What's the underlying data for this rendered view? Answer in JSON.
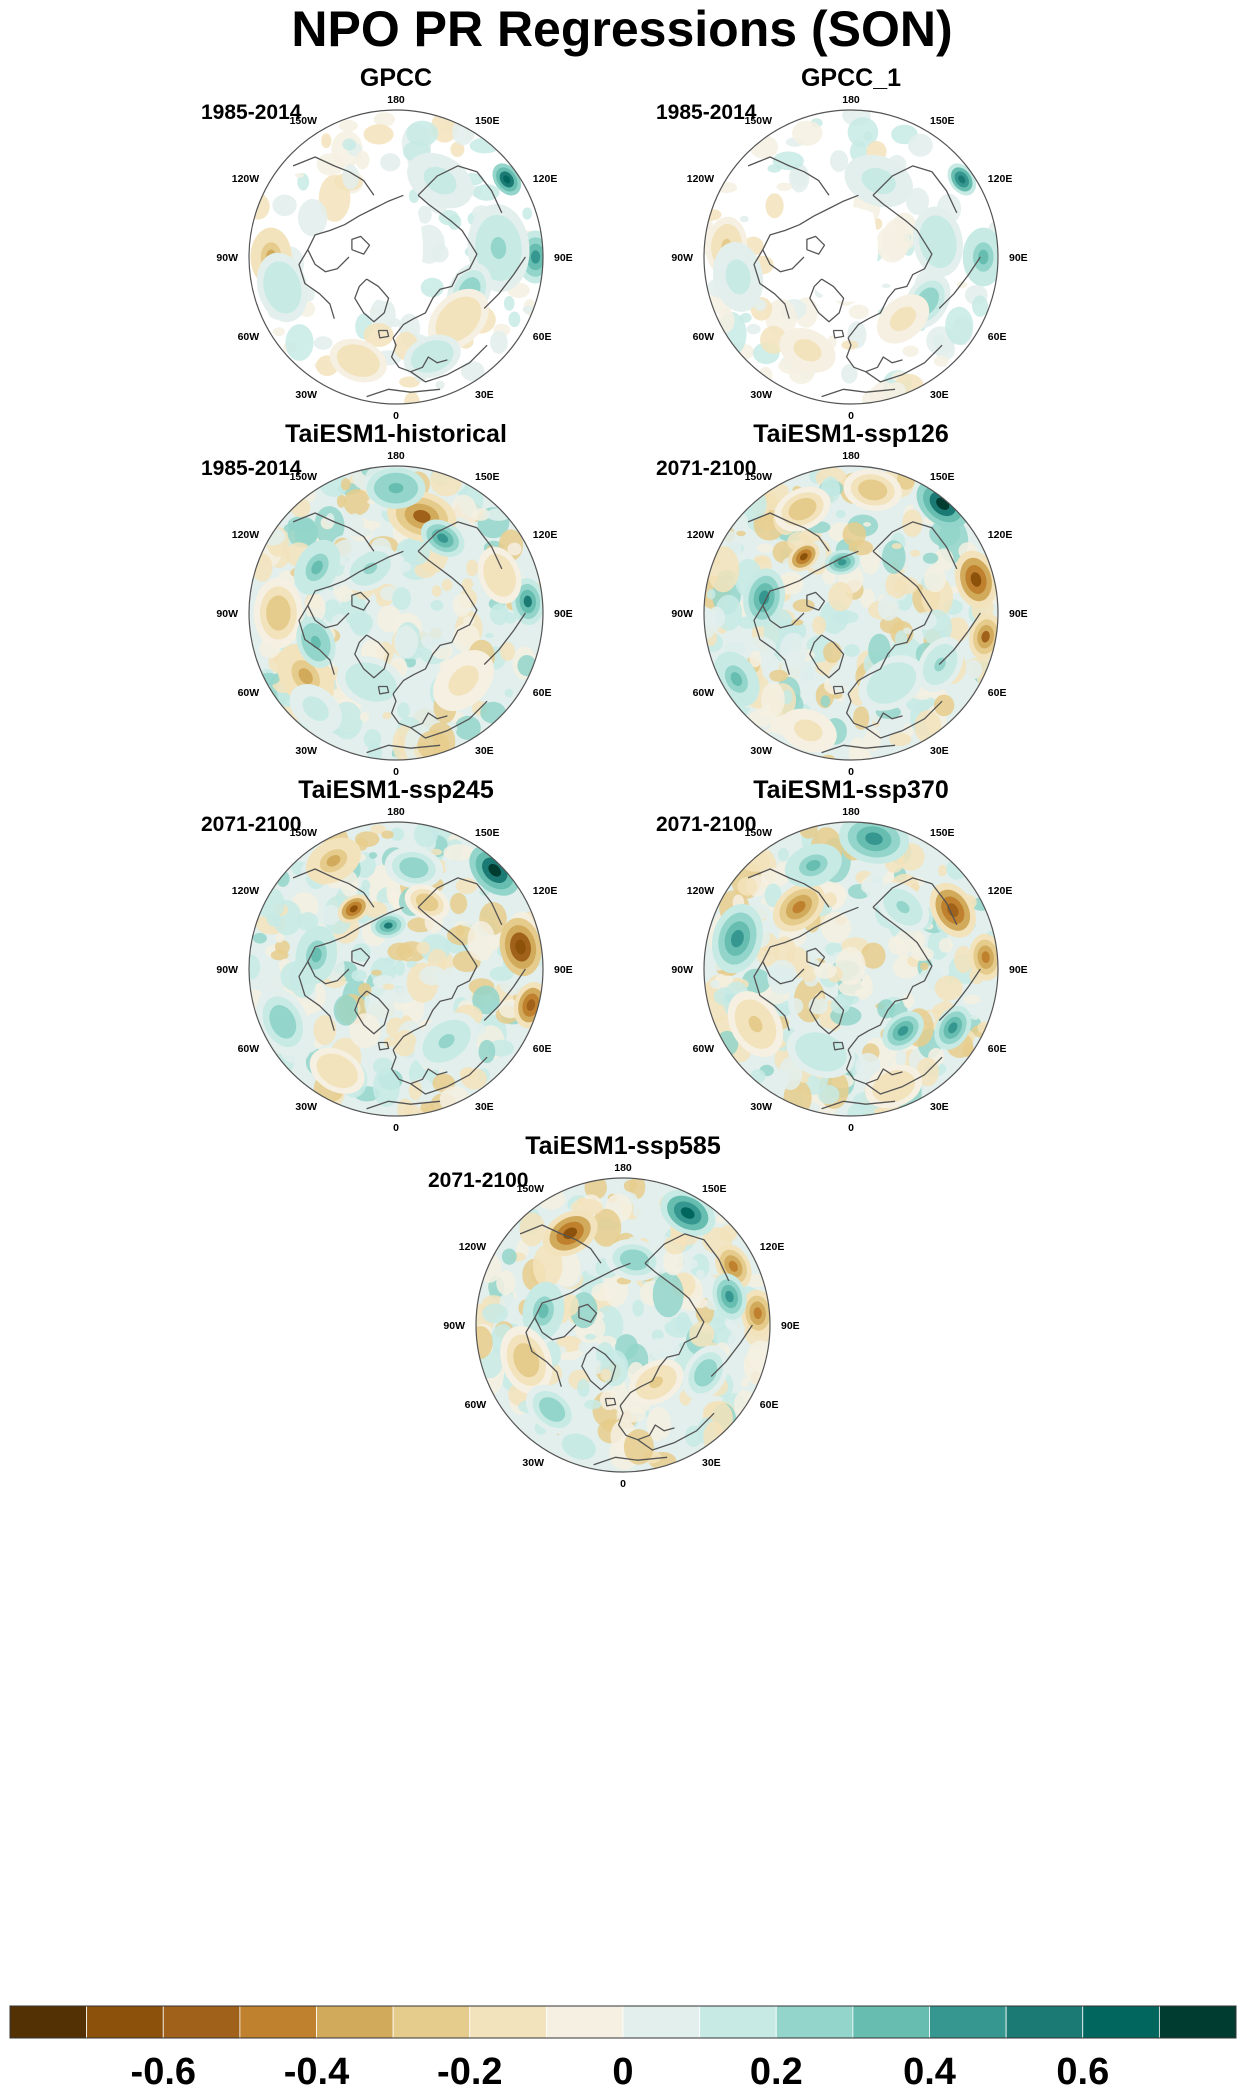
{
  "title": "NPO PR Regressions (SON)",
  "colors": {
    "palette": [
      "#543005",
      "#8c510a",
      "#a0611a",
      "#bf812d",
      "#d2aa5c",
      "#e6cc8c",
      "#f3e3bc",
      "#f5f0e2",
      "#e2efec",
      "#c7eae5",
      "#93d5ca",
      "#66bdb0",
      "#35978f",
      "#1b7b74",
      "#01665e",
      "#003c30"
    ],
    "land_mask": "#ffffff",
    "coastline": "#555555"
  },
  "colorbar": {
    "levels": [
      -0.7,
      -0.6,
      -0.5,
      -0.4,
      -0.3,
      -0.2,
      -0.1,
      0,
      0.1,
      0.2,
      0.3,
      0.4,
      0.5,
      0.6,
      0.7
    ],
    "tick_labels": [
      {
        "text": "-0.6",
        "value": -0.6
      },
      {
        "text": "-0.4",
        "value": -0.4
      },
      {
        "text": "-0.2",
        "value": -0.2
      },
      {
        "text": "0",
        "value": 0
      },
      {
        "text": "0.2",
        "value": 0.2
      },
      {
        "text": "0.4",
        "value": 0.4
      },
      {
        "text": "0.6",
        "value": 0.6
      }
    ]
  },
  "lon_labels": [
    "180",
    "150E",
    "120E",
    "90E",
    "60E",
    "30E",
    "0",
    "30W",
    "60W",
    "90W",
    "120W",
    "150W"
  ],
  "panels": [
    {
      "title": "GPCC",
      "period": "1985-2014",
      "observed": true,
      "features": [
        {
          "lon": 125,
          "r": 0.92,
          "v": 0.7,
          "s": 0.06
        },
        {
          "lon": 90,
          "r": 0.95,
          "v": 0.5,
          "s": 0.09
        },
        {
          "lon": 95,
          "r": 0.7,
          "v": 0.25,
          "s": 0.15
        },
        {
          "lon": 65,
          "r": 0.55,
          "v": 0.3,
          "s": 0.1
        },
        {
          "lon": 45,
          "r": 0.6,
          "v": -0.2,
          "s": 0.12
        },
        {
          "lon": -90,
          "r": 0.85,
          "v": -0.35,
          "s": 0.1
        },
        {
          "lon": -75,
          "r": 0.8,
          "v": 0.2,
          "s": 0.12
        },
        {
          "lon": -20,
          "r": 0.75,
          "v": -0.2,
          "s": 0.1
        },
        {
          "lon": 20,
          "r": 0.72,
          "v": 0.2,
          "s": 0.1
        },
        {
          "lon": 150,
          "r": 0.6,
          "v": 0.15,
          "s": 0.12
        }
      ]
    },
    {
      "title": "GPCC_1",
      "period": "1985-2014",
      "observed": true,
      "features": [
        {
          "lon": 125,
          "r": 0.92,
          "v": 0.6,
          "s": 0.06
        },
        {
          "lon": 90,
          "r": 0.9,
          "v": 0.35,
          "s": 0.1
        },
        {
          "lon": 100,
          "r": 0.6,
          "v": 0.2,
          "s": 0.12
        },
        {
          "lon": 60,
          "r": 0.6,
          "v": 0.3,
          "s": 0.1
        },
        {
          "lon": 40,
          "r": 0.55,
          "v": -0.15,
          "s": 0.1
        },
        {
          "lon": -95,
          "r": 0.85,
          "v": -0.25,
          "s": 0.1
        },
        {
          "lon": -80,
          "r": 0.78,
          "v": 0.15,
          "s": 0.12
        },
        {
          "lon": -25,
          "r": 0.7,
          "v": -0.15,
          "s": 0.1
        },
        {
          "lon": 160,
          "r": 0.55,
          "v": 0.15,
          "s": 0.12
        }
      ]
    },
    {
      "title": "TaiESM1-historical",
      "period": "1985-2014",
      "observed": false,
      "features": [
        {
          "lon": 165,
          "r": 0.68,
          "v": -0.55,
          "s": 0.12
        },
        {
          "lon": 180,
          "r": 0.85,
          "v": 0.4,
          "s": 0.1
        },
        {
          "lon": 148,
          "r": 0.6,
          "v": 0.45,
          "s": 0.08
        },
        {
          "lon": 95,
          "r": 0.9,
          "v": 0.55,
          "s": 0.08
        },
        {
          "lon": 110,
          "r": 0.75,
          "v": -0.2,
          "s": 0.1
        },
        {
          "lon": -120,
          "r": 0.62,
          "v": 0.35,
          "s": 0.1
        },
        {
          "lon": -150,
          "r": 0.35,
          "v": 0.25,
          "s": 0.1
        },
        {
          "lon": -90,
          "r": 0.8,
          "v": -0.3,
          "s": 0.12
        },
        {
          "lon": -55,
          "r": 0.75,
          "v": -0.35,
          "s": 0.12
        },
        {
          "lon": -70,
          "r": 0.58,
          "v": 0.4,
          "s": 0.09
        },
        {
          "lon": -20,
          "r": 0.5,
          "v": 0.2,
          "s": 0.12
        },
        {
          "lon": 45,
          "r": 0.65,
          "v": -0.15,
          "s": 0.12
        },
        {
          "lon": -40,
          "r": 0.85,
          "v": 0.15,
          "s": 0.1
        }
      ]
    },
    {
      "title": "TaiESM1-ssp126",
      "period": "2071-2100",
      "observed": false,
      "features": [
        {
          "lon": 140,
          "r": 0.97,
          "v": 0.75,
          "s": 0.1
        },
        {
          "lon": 105,
          "r": 0.88,
          "v": -0.65,
          "s": 0.1
        },
        {
          "lon": 80,
          "r": 0.93,
          "v": -0.55,
          "s": 0.08
        },
        {
          "lon": -140,
          "r": 0.5,
          "v": -0.65,
          "s": 0.06
        },
        {
          "lon": -170,
          "r": 0.35,
          "v": 0.5,
          "s": 0.06
        },
        {
          "lon": -155,
          "r": 0.78,
          "v": -0.3,
          "s": 0.1
        },
        {
          "lon": -100,
          "r": 0.6,
          "v": 0.45,
          "s": 0.1
        },
        {
          "lon": -60,
          "r": 0.9,
          "v": 0.35,
          "s": 0.1
        },
        {
          "lon": 170,
          "r": 0.85,
          "v": -0.3,
          "s": 0.1
        },
        {
          "lon": 30,
          "r": 0.55,
          "v": 0.2,
          "s": 0.12
        },
        {
          "lon": 60,
          "r": 0.7,
          "v": 0.25,
          "s": 0.1
        },
        {
          "lon": -20,
          "r": 0.85,
          "v": -0.15,
          "s": 0.1
        }
      ]
    },
    {
      "title": "TaiESM1-ssp245",
      "period": "2071-2100",
      "observed": false,
      "features": [
        {
          "lon": 135,
          "r": 0.95,
          "v": 0.75,
          "s": 0.1
        },
        {
          "lon": 100,
          "r": 0.86,
          "v": -0.7,
          "s": 0.1
        },
        {
          "lon": 75,
          "r": 0.95,
          "v": -0.6,
          "s": 0.08
        },
        {
          "lon": -145,
          "r": 0.5,
          "v": -0.65,
          "s": 0.06
        },
        {
          "lon": -170,
          "r": 0.3,
          "v": 0.55,
          "s": 0.06
        },
        {
          "lon": -150,
          "r": 0.85,
          "v": -0.35,
          "s": 0.1
        },
        {
          "lon": -100,
          "r": 0.55,
          "v": 0.35,
          "s": 0.1
        },
        {
          "lon": -65,
          "r": 0.85,
          "v": 0.3,
          "s": 0.12
        },
        {
          "lon": 170,
          "r": 0.7,
          "v": 0.3,
          "s": 0.1
        },
        {
          "lon": 155,
          "r": 0.5,
          "v": -0.3,
          "s": 0.08
        },
        {
          "lon": 35,
          "r": 0.6,
          "v": 0.25,
          "s": 0.12
        },
        {
          "lon": -30,
          "r": 0.8,
          "v": -0.2,
          "s": 0.1
        }
      ]
    },
    {
      "title": "TaiESM1-ssp370",
      "period": "2071-2100",
      "observed": false,
      "features": [
        {
          "lon": 170,
          "r": 0.9,
          "v": 0.45,
          "s": 0.12
        },
        {
          "lon": 120,
          "r": 0.8,
          "v": -0.6,
          "s": 0.1
        },
        {
          "lon": 95,
          "r": 0.92,
          "v": -0.45,
          "s": 0.08
        },
        {
          "lon": -105,
          "r": 0.8,
          "v": 0.5,
          "s": 0.12
        },
        {
          "lon": -140,
          "r": 0.55,
          "v": -0.45,
          "s": 0.1
        },
        {
          "lon": -160,
          "r": 0.75,
          "v": 0.35,
          "s": 0.1
        },
        {
          "lon": 40,
          "r": 0.55,
          "v": 0.45,
          "s": 0.08
        },
        {
          "lon": 60,
          "r": 0.8,
          "v": 0.45,
          "s": 0.08
        },
        {
          "lon": -60,
          "r": 0.75,
          "v": -0.25,
          "s": 0.12
        },
        {
          "lon": -20,
          "r": 0.6,
          "v": 0.2,
          "s": 0.12
        },
        {
          "lon": 20,
          "r": 0.85,
          "v": -0.2,
          "s": 0.1
        },
        {
          "lon": 140,
          "r": 0.55,
          "v": 0.25,
          "s": 0.1
        }
      ]
    },
    {
      "title": "TaiESM1-ssp585",
      "period": "2071-2100",
      "observed": false,
      "features": [
        {
          "lon": -150,
          "r": 0.72,
          "v": -0.65,
          "s": 0.1
        },
        {
          "lon": 150,
          "r": 0.88,
          "v": 0.65,
          "s": 0.1
        },
        {
          "lon": 118,
          "r": 0.85,
          "v": -0.45,
          "s": 0.08
        },
        {
          "lon": 95,
          "r": 0.92,
          "v": -0.5,
          "s": 0.08
        },
        {
          "lon": 105,
          "r": 0.75,
          "v": 0.5,
          "s": 0.08
        },
        {
          "lon": -100,
          "r": 0.55,
          "v": 0.35,
          "s": 0.1
        },
        {
          "lon": -70,
          "r": 0.7,
          "v": -0.3,
          "s": 0.12
        },
        {
          "lon": -40,
          "r": 0.75,
          "v": 0.3,
          "s": 0.1
        },
        {
          "lon": 30,
          "r": 0.45,
          "v": -0.25,
          "s": 0.1
        },
        {
          "lon": 60,
          "r": 0.65,
          "v": 0.3,
          "s": 0.1
        },
        {
          "lon": 170,
          "r": 0.45,
          "v": 0.3,
          "s": 0.1
        },
        {
          "lon": -20,
          "r": 0.88,
          "v": 0.2,
          "s": 0.08
        }
      ]
    }
  ]
}
